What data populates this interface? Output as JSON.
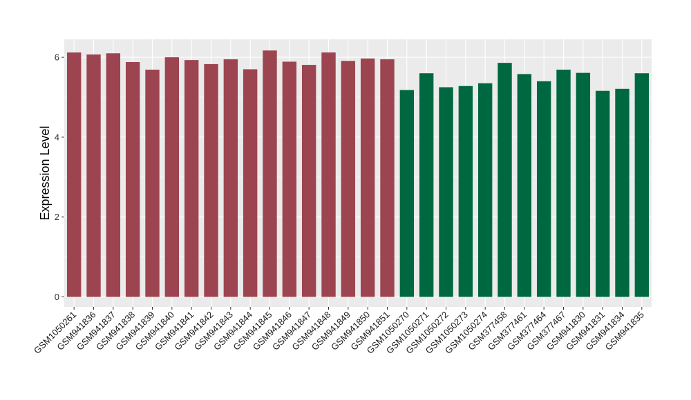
{
  "chart_data": {
    "type": "bar",
    "title": "",
    "xlabel": "",
    "ylabel": "Expression Level",
    "ylim": [
      -0.25,
      6.45
    ],
    "yticks": [
      0,
      2,
      4,
      6
    ],
    "grid": true,
    "legend": "none",
    "categories": [
      "GSM1050261",
      "GSM941836",
      "GSM941837",
      "GSM941838",
      "GSM941839",
      "GSM941840",
      "GSM941841",
      "GSM941842",
      "GSM941843",
      "GSM941844",
      "GSM941845",
      "GSM941846",
      "GSM941847",
      "GSM941848",
      "GSM941849",
      "GSM941850",
      "GSM941851",
      "GSM1050270",
      "GSM1050271",
      "GSM1050272",
      "GSM1050273",
      "GSM1050274",
      "GSM377458",
      "GSM377461",
      "GSM377464",
      "GSM377467",
      "GSM941830",
      "GSM941831",
      "GSM941834",
      "GSM941835"
    ],
    "values": [
      6.12,
      6.07,
      6.1,
      5.88,
      5.69,
      6.0,
      5.93,
      5.83,
      5.95,
      5.7,
      6.17,
      5.89,
      5.81,
      6.12,
      5.91,
      5.97,
      5.95,
      5.18,
      5.6,
      5.25,
      5.28,
      5.35,
      5.86,
      5.58,
      5.4,
      5.69,
      5.61,
      5.16,
      5.21,
      5.6
    ],
    "bar_colors": [
      "#9c4550",
      "#9c4550",
      "#9c4550",
      "#9c4550",
      "#9c4550",
      "#9c4550",
      "#9c4550",
      "#9c4550",
      "#9c4550",
      "#9c4550",
      "#9c4550",
      "#9c4550",
      "#9c4550",
      "#9c4550",
      "#9c4550",
      "#9c4550",
      "#9c4550",
      "#006841",
      "#006841",
      "#006841",
      "#006841",
      "#006841",
      "#006841",
      "#006841",
      "#006841",
      "#006841",
      "#006841",
      "#006841",
      "#006841",
      "#006841"
    ],
    "panel_background": "#ebebeb",
    "grid_color": "#ffffff"
  }
}
